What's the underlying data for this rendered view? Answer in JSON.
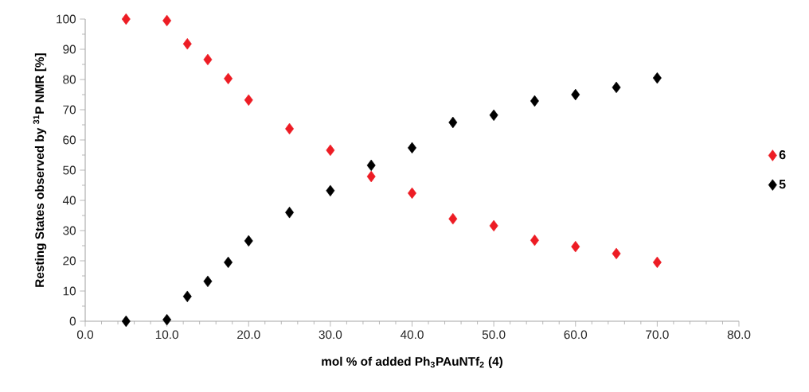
{
  "chart_data": {
    "type": "scatter",
    "xlabel": "mol % of added Ph$_{3}$PAuNTf$_{2}$ (4)",
    "ylabel": "Resting States observed by $^{31}$P NMR [%]",
    "x": [
      5,
      10,
      12.5,
      15,
      17.5,
      20,
      25,
      30,
      35,
      40,
      45,
      50,
      55,
      60,
      65,
      70
    ],
    "series": [
      {
        "name": "6",
        "color": "#ed1c24",
        "values": [
          100,
          99.5,
          91.8,
          86.6,
          80.3,
          73.2,
          63.7,
          56.6,
          47.9,
          42.4,
          33.9,
          31.6,
          26.8,
          24.7,
          22.4,
          19.5
        ]
      },
      {
        "name": "5",
        "color": "#000000",
        "values": [
          0,
          0.5,
          8.2,
          13.2,
          19.5,
          26.6,
          36.0,
          43.2,
          51.6,
          57.4,
          65.8,
          68.2,
          72.9,
          75.0,
          77.4,
          80.5
        ]
      }
    ],
    "xlim": [
      0,
      80
    ],
    "ylim": [
      0,
      100
    ],
    "xticks": [
      {
        "value": 0,
        "label": "0.0"
      },
      {
        "value": 10,
        "label": "10.0"
      },
      {
        "value": 20,
        "label": "20.0"
      },
      {
        "value": 30,
        "label": "30.0"
      },
      {
        "value": 40,
        "label": "40.0"
      },
      {
        "value": 50,
        "label": "50.0"
      },
      {
        "value": 60,
        "label": "60.0"
      },
      {
        "value": 70,
        "label": "70.0"
      },
      {
        "value": 80,
        "label": "80.0"
      }
    ],
    "yticks": [
      0,
      10,
      20,
      30,
      40,
      50,
      60,
      70,
      80,
      90,
      100
    ],
    "legend": "right",
    "marker": "diamond"
  }
}
